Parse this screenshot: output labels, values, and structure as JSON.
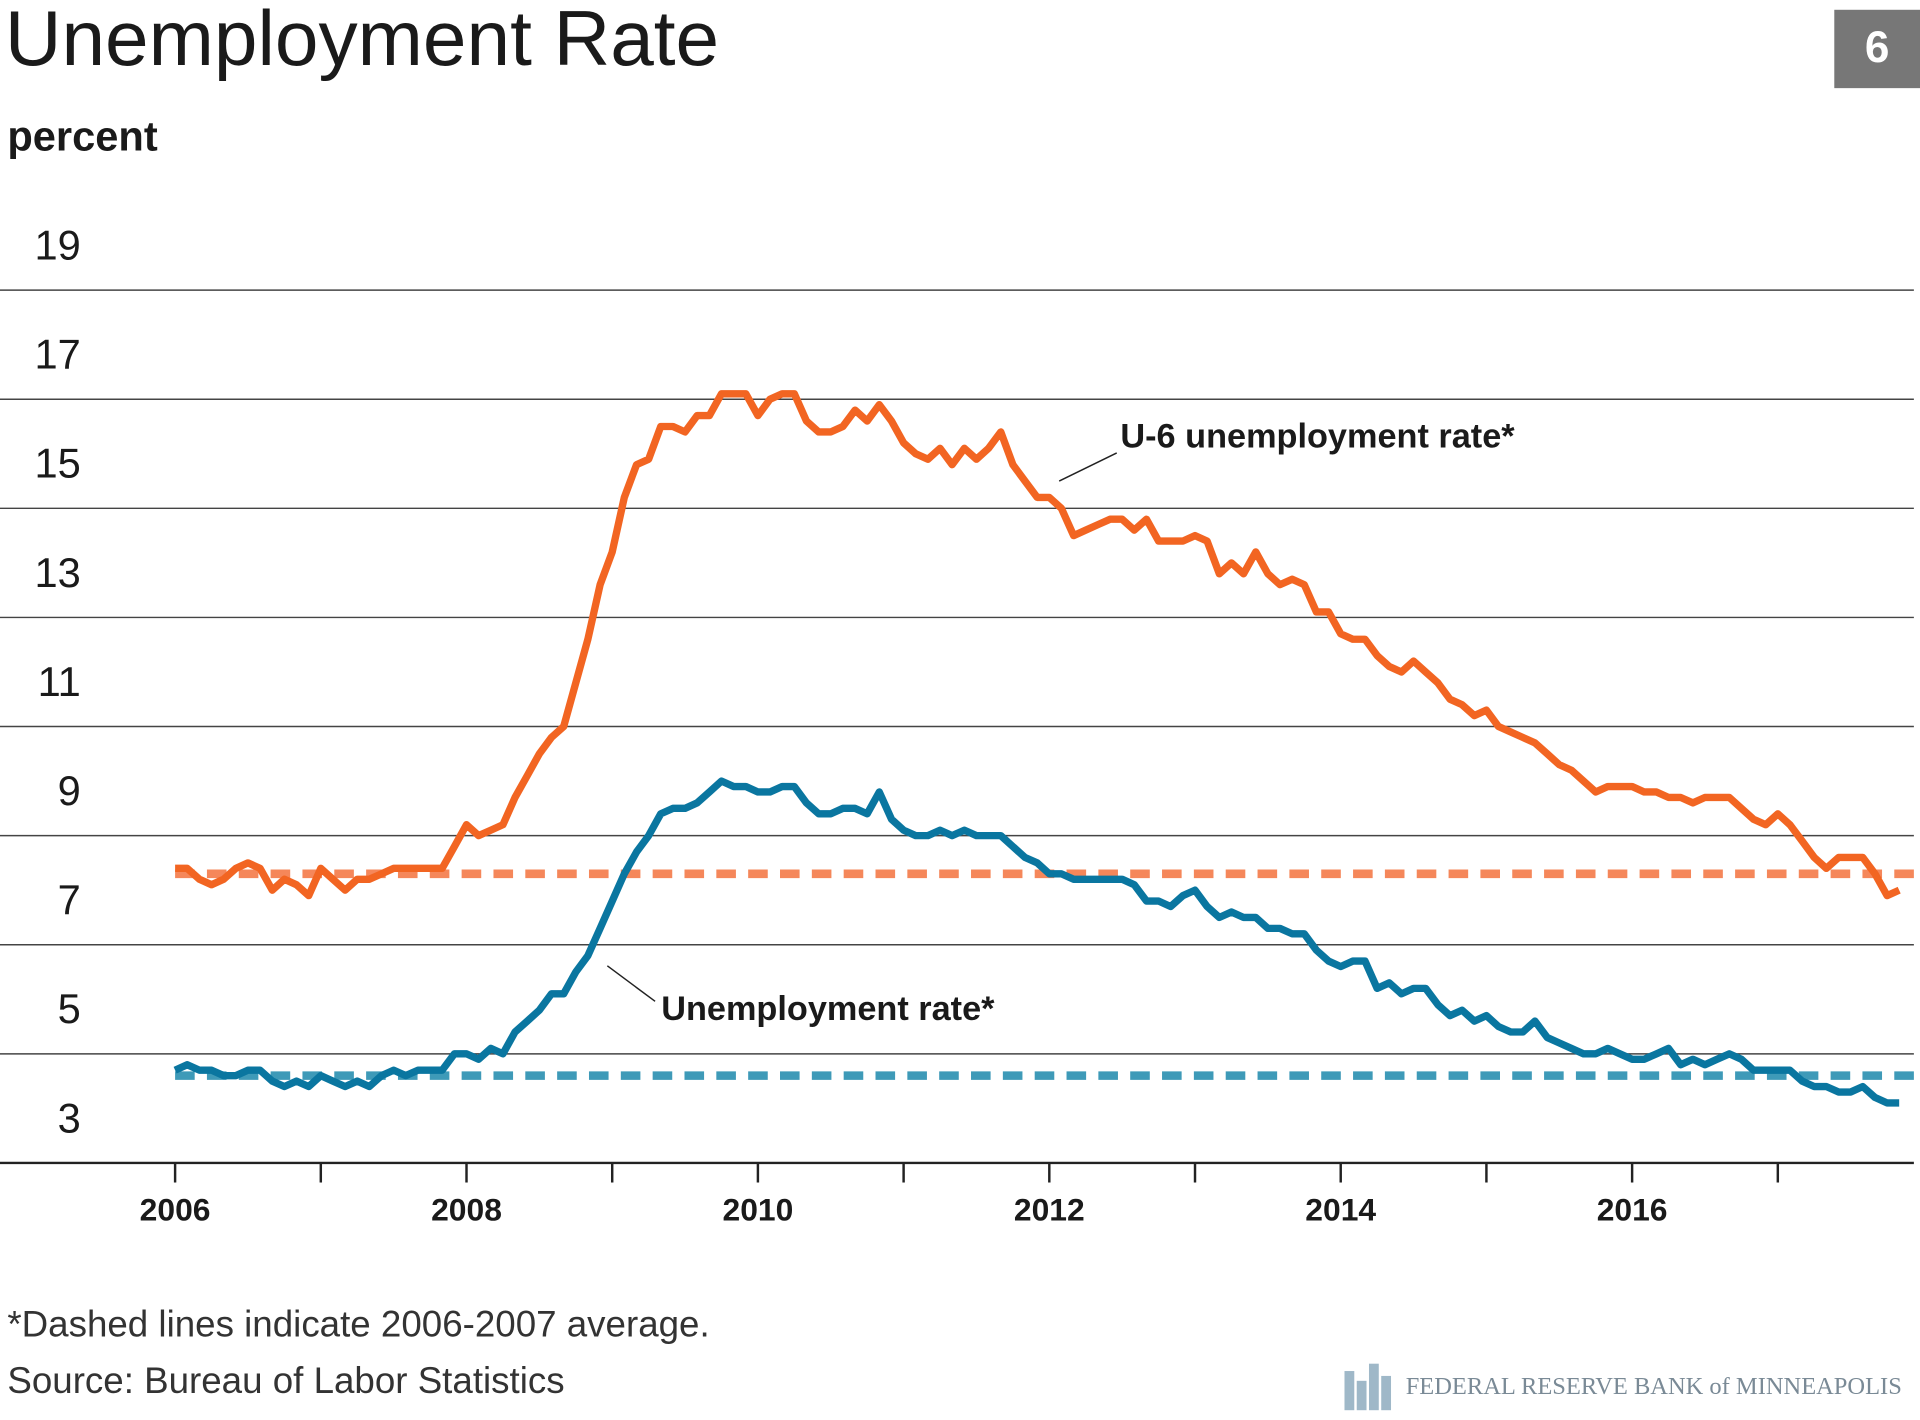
{
  "chart_data": {
    "type": "line",
    "title": "Unemployment Rate",
    "badge": "6",
    "y_label": "percent",
    "x": [
      2006,
      2006.083,
      2006.167,
      2006.25,
      2006.333,
      2006.417,
      2006.5,
      2006.583,
      2006.667,
      2006.75,
      2006.833,
      2006.917,
      2007,
      2007.083,
      2007.167,
      2007.25,
      2007.333,
      2007.417,
      2007.5,
      2007.583,
      2007.667,
      2007.75,
      2007.833,
      2007.917,
      2008,
      2008.083,
      2008.167,
      2008.25,
      2008.333,
      2008.417,
      2008.5,
      2008.583,
      2008.667,
      2008.75,
      2008.833,
      2008.917,
      2009,
      2009.083,
      2009.167,
      2009.25,
      2009.333,
      2009.417,
      2009.5,
      2009.583,
      2009.667,
      2009.75,
      2009.833,
      2009.917,
      2010,
      2010.083,
      2010.167,
      2010.25,
      2010.333,
      2010.417,
      2010.5,
      2010.583,
      2010.667,
      2010.75,
      2010.833,
      2010.917,
      2011,
      2011.083,
      2011.167,
      2011.25,
      2011.333,
      2011.417,
      2011.5,
      2011.583,
      2011.667,
      2011.75,
      2011.833,
      2011.917,
      2012,
      2012.083,
      2012.167,
      2012.25,
      2012.333,
      2012.417,
      2012.5,
      2012.583,
      2012.667,
      2012.75,
      2012.833,
      2012.917,
      2013,
      2013.083,
      2013.167,
      2013.25,
      2013.333,
      2013.417,
      2013.5,
      2013.583,
      2013.667,
      2013.75,
      2013.833,
      2013.917,
      2014,
      2014.083,
      2014.167,
      2014.25,
      2014.333,
      2014.417,
      2014.5,
      2014.583,
      2014.667,
      2014.75,
      2014.833,
      2014.917,
      2015,
      2015.083,
      2015.167,
      2015.25,
      2015.333,
      2015.417,
      2015.5,
      2015.583,
      2015.667,
      2015.75,
      2015.833,
      2015.917,
      2016,
      2016.083,
      2016.167,
      2016.25,
      2016.333,
      2016.417,
      2016.5,
      2016.583,
      2016.667,
      2016.75,
      2016.833,
      2016.917,
      2017,
      2017.083,
      2017.167,
      2017.25,
      2017.333,
      2017.417,
      2017.5,
      2017.583,
      2017.667,
      2017.75,
      2017.833
    ],
    "series": [
      {
        "name": "U-6 unemployment rate*",
        "color": "#f26522",
        "values": [
          8.4,
          8.4,
          8.2,
          8.1,
          8.2,
          8.4,
          8.5,
          8.4,
          8.0,
          8.2,
          8.1,
          7.9,
          8.4,
          8.2,
          8.0,
          8.2,
          8.2,
          8.3,
          8.4,
          8.4,
          8.4,
          8.4,
          8.4,
          8.8,
          9.2,
          9.0,
          9.1,
          9.2,
          9.7,
          10.1,
          10.5,
          10.8,
          11.0,
          11.8,
          12.6,
          13.6,
          14.2,
          15.2,
          15.8,
          15.9,
          16.5,
          16.5,
          16.4,
          16.7,
          16.7,
          17.1,
          17.1,
          17.1,
          16.7,
          17.0,
          17.1,
          17.1,
          16.6,
          16.4,
          16.4,
          16.5,
          16.8,
          16.6,
          16.9,
          16.6,
          16.2,
          16.0,
          15.9,
          16.1,
          15.8,
          16.1,
          15.9,
          16.1,
          16.4,
          15.8,
          15.5,
          15.2,
          15.2,
          15.0,
          14.5,
          14.6,
          14.7,
          14.8,
          14.8,
          14.6,
          14.8,
          14.4,
          14.4,
          14.4,
          14.5,
          14.4,
          13.8,
          14.0,
          13.8,
          14.2,
          13.8,
          13.6,
          13.7,
          13.6,
          13.1,
          13.1,
          12.7,
          12.6,
          12.6,
          12.3,
          12.1,
          12.0,
          12.2,
          12.0,
          11.8,
          11.5,
          11.4,
          11.2,
          11.3,
          11.0,
          10.9,
          10.8,
          10.7,
          10.5,
          10.3,
          10.2,
          10.0,
          9.8,
          9.9,
          9.9,
          9.9,
          9.8,
          9.8,
          9.7,
          9.7,
          9.6,
          9.7,
          9.7,
          9.7,
          9.5,
          9.3,
          9.2,
          9.4,
          9.2,
          8.9,
          8.6,
          8.4,
          8.6,
          8.6,
          8.6,
          8.3,
          7.9,
          8.0
        ]
      },
      {
        "name": "Unemployment rate*",
        "color": "#0a76a0",
        "values": [
          4.7,
          4.8,
          4.7,
          4.7,
          4.6,
          4.6,
          4.7,
          4.7,
          4.5,
          4.4,
          4.5,
          4.4,
          4.6,
          4.5,
          4.4,
          4.5,
          4.4,
          4.6,
          4.7,
          4.6,
          4.7,
          4.7,
          4.7,
          5.0,
          5.0,
          4.9,
          5.1,
          5.0,
          5.4,
          5.6,
          5.8,
          6.1,
          6.1,
          6.5,
          6.8,
          7.3,
          7.8,
          8.3,
          8.7,
          9.0,
          9.4,
          9.5,
          9.5,
          9.6,
          9.8,
          10.0,
          9.9,
          9.9,
          9.8,
          9.8,
          9.9,
          9.9,
          9.6,
          9.4,
          9.4,
          9.5,
          9.5,
          9.4,
          9.8,
          9.3,
          9.1,
          9.0,
          9.0,
          9.1,
          9.0,
          9.1,
          9.0,
          9.0,
          9.0,
          8.8,
          8.6,
          8.5,
          8.3,
          8.3,
          8.2,
          8.2,
          8.2,
          8.2,
          8.2,
          8.1,
          7.8,
          7.8,
          7.7,
          7.9,
          8.0,
          7.7,
          7.5,
          7.6,
          7.5,
          7.5,
          7.3,
          7.3,
          7.2,
          7.2,
          6.9,
          6.7,
          6.6,
          6.7,
          6.7,
          6.2,
          6.3,
          6.1,
          6.2,
          6.2,
          5.9,
          5.7,
          5.8,
          5.6,
          5.7,
          5.5,
          5.4,
          5.4,
          5.6,
          5.3,
          5.2,
          5.1,
          5.0,
          5.0,
          5.1,
          5.0,
          4.9,
          4.9,
          5.0,
          5.1,
          4.8,
          4.9,
          4.8,
          4.9,
          5.0,
          4.9,
          4.7,
          4.7,
          4.7,
          4.7,
          4.5,
          4.4,
          4.4,
          4.3,
          4.3,
          4.4,
          4.2,
          4.1,
          4.1
        ]
      }
    ],
    "reference_lines": [
      {
        "value": 8.3,
        "color": "#f5875a",
        "dashed": true
      },
      {
        "value": 4.6,
        "color": "#3e9ab8",
        "dashed": true
      }
    ],
    "xlim": [
      2006,
      2017.917
    ],
    "xticks": [
      2006,
      2008,
      2010,
      2012,
      2014,
      2016
    ],
    "xminor_ticks": [
      2007,
      2009,
      2011,
      2013,
      2015,
      2017
    ],
    "ylim": [
      3,
      19
    ],
    "yticks": [
      3,
      5,
      7,
      9,
      11,
      13,
      15,
      17,
      19
    ],
    "grid": true,
    "footnote": "*Dashed lines indicate 2006-2007 average.",
    "source": "Source: Bureau of Labor Statistics",
    "credit": "FEDERAL RESERVE BANK of MINNEAPOLIS"
  }
}
